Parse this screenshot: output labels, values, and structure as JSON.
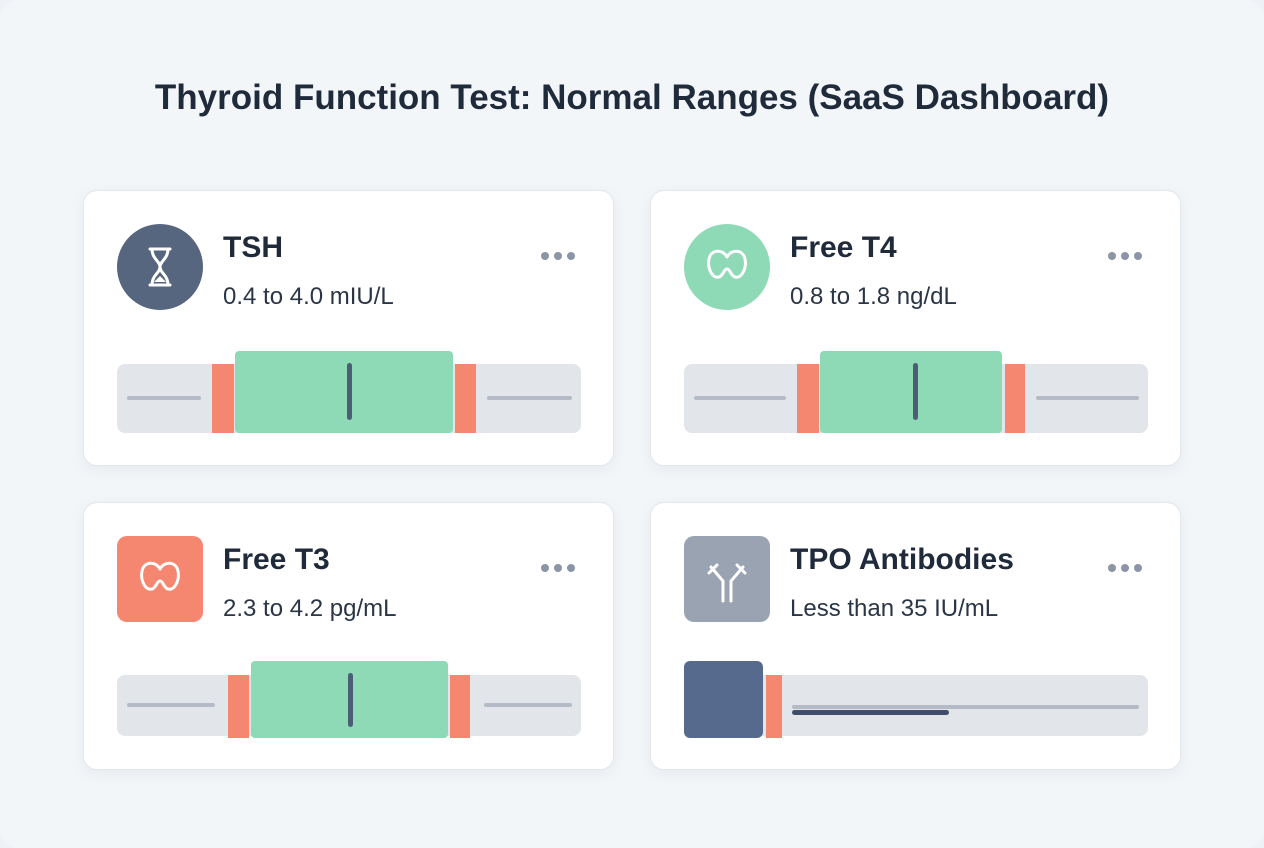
{
  "title": "Thyroid Function Test: Normal Ranges (SaaS Dashboard)",
  "cards": [
    {
      "name": "TSH",
      "range": "0.4 to 4.0 mIU/L"
    },
    {
      "name": "Free T4",
      "range": "0.8 to 1.8 ng/dL"
    },
    {
      "name": "Free T3",
      "range": "2.3 to 4.2 pg/mL"
    },
    {
      "name": "TPO Antibodies",
      "range": "Less than 35 IU/mL"
    }
  ]
}
